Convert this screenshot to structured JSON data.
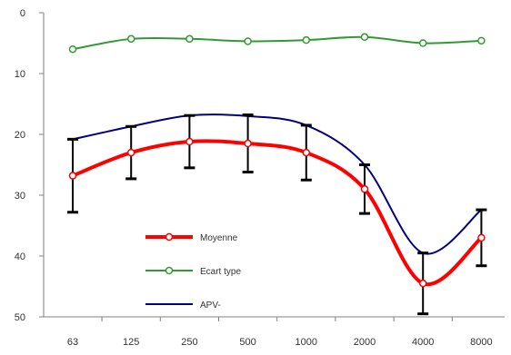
{
  "chart_data": {
    "type": "line",
    "categories": [
      "63",
      "125",
      "250",
      "500",
      "1000",
      "2000",
      "4000",
      "8000"
    ],
    "y_axis": {
      "ylim": [
        0,
        50
      ],
      "reversed": true,
      "ticks": [
        "0",
        "10",
        "20",
        "30",
        "40",
        "50"
      ]
    },
    "grid": false,
    "legend_placement": "bottom-center",
    "series": [
      {
        "name": "Moyenne",
        "color": "#ff0000",
        "values": [
          26.8,
          23.0,
          21.2,
          21.5,
          23.0,
          29.0,
          44.5,
          37.0
        ],
        "error": [
          6.0,
          4.3,
          4.3,
          4.7,
          4.5,
          4.0,
          5.0,
          4.6
        ],
        "marker": "circle-open"
      },
      {
        "name": "Ecart type",
        "color": "#339933",
        "values": [
          6.0,
          4.3,
          4.3,
          4.7,
          4.5,
          4.0,
          5.0,
          4.6
        ],
        "marker": "circle-open"
      },
      {
        "name": "APV-",
        "color": "#000080",
        "values": [
          20.8,
          18.7,
          16.9,
          17.0,
          18.5,
          25.0,
          39.5,
          32.4
        ],
        "marker": "none"
      }
    ]
  }
}
